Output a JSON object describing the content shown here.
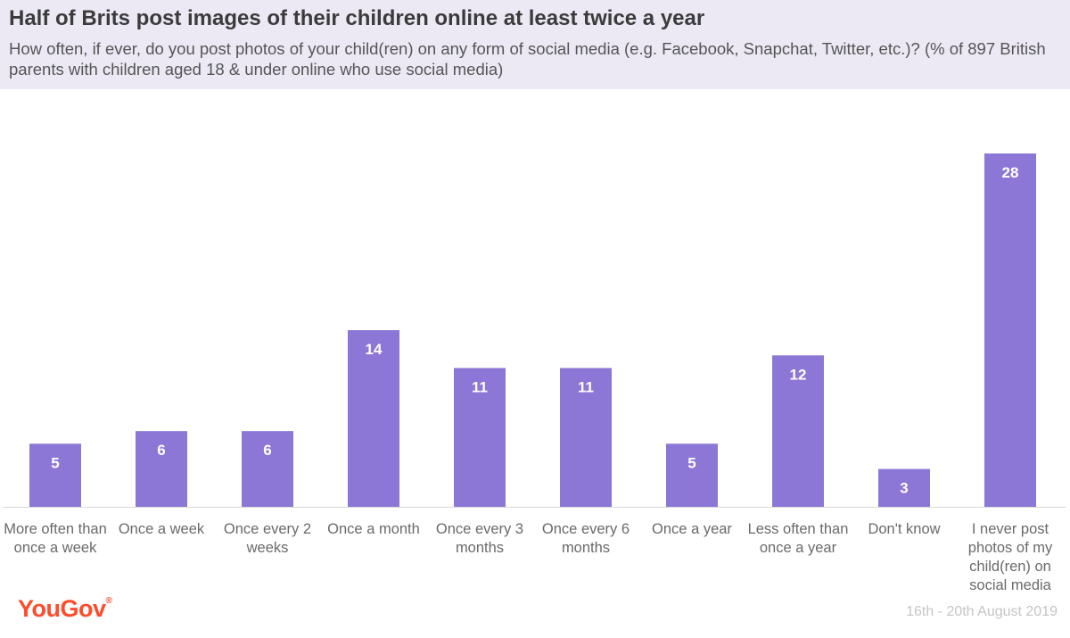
{
  "header": {
    "title": "Half of Brits post images of their children online at least twice a year",
    "subtitle": "How often, if ever, do you post photos of your child(ren) on any form of social media (e.g. Facebook, Snapchat, Twitter, etc.)? (% of 897 British parents with children aged 18 & under online who use social media)"
  },
  "footer": {
    "logo": "YouGov",
    "date": "16th - 20th August 2019"
  },
  "colors": {
    "bar": "#8c77d6",
    "header_bg": "#ece9f5",
    "logo": "#ff4b2b"
  },
  "chart_data": {
    "type": "bar",
    "categories": [
      "More often than once a week",
      "Once a week",
      "Once every 2 weeks",
      "Once a month",
      "Once every 3 months",
      "Once every 6 months",
      "Once a year",
      "Less often than once a year",
      "Don't know",
      "I never post photos of my child(ren) on social media"
    ],
    "values": [
      5,
      6,
      6,
      14,
      11,
      11,
      5,
      12,
      3,
      28
    ],
    "ylim": [
      0,
      28
    ],
    "grid": false,
    "legend": "none"
  }
}
